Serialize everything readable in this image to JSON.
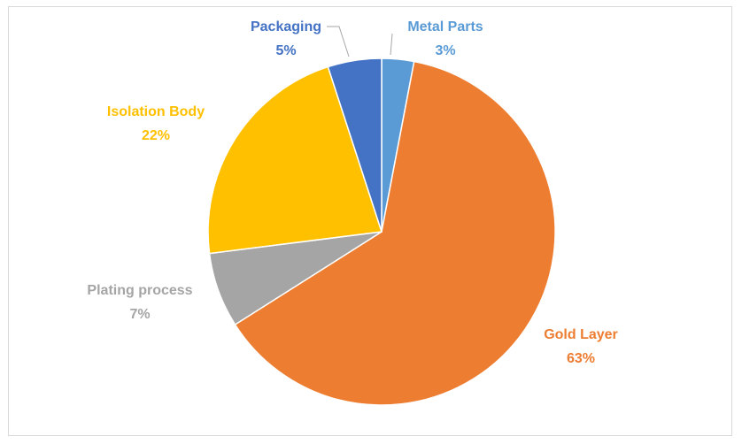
{
  "chart_data": {
    "type": "pie",
    "title": "",
    "slices": [
      {
        "label": "Metal Parts",
        "value": 3,
        "value_text": "3%",
        "color": "#5b9bd5"
      },
      {
        "label": "Gold Layer",
        "value": 63,
        "value_text": "63%",
        "color": "#ed7d31"
      },
      {
        "label": "Plating process",
        "value": 7,
        "value_text": "7%",
        "color": "#a5a5a5"
      },
      {
        "label": "Isolation Body",
        "value": 22,
        "value_text": "22%",
        "color": "#ffc000"
      },
      {
        "label": "Packaging",
        "value": 5,
        "value_text": "5%",
        "color": "#4472c4"
      }
    ],
    "start_angle": "12 o'clock",
    "direction": "clockwise",
    "legend": "none",
    "data_labels": "outside with category name and percentage"
  }
}
